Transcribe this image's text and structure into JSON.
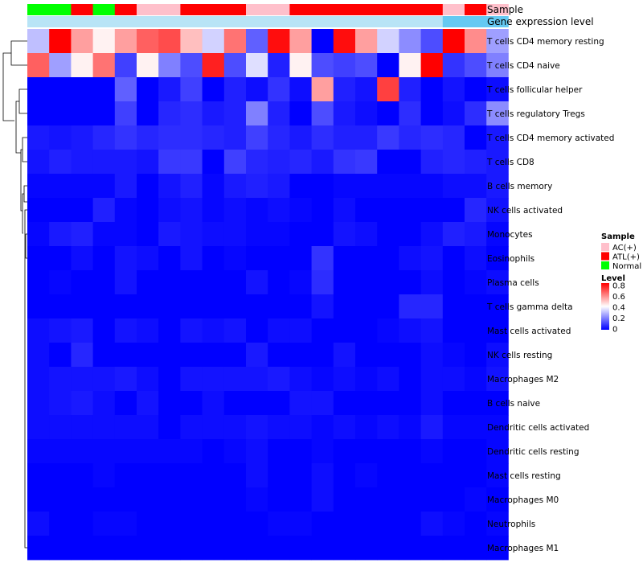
{
  "chart_data": {
    "type": "heatmap",
    "title": "",
    "track_labels": {
      "sample": "Sample",
      "level": "Gene expression level"
    },
    "rows": [
      "T cells CD4 memory resting",
      "T cells CD4 naive",
      "T cells follicular helper",
      "T cells regulatory  Tregs",
      "T cells CD4 memory activated",
      "T cells CD8",
      "B cells memory",
      "NK cells activated",
      "Monocytes",
      "Eosinophils",
      "Plasma cells",
      "T cells gamma delta",
      "Mast cells activated",
      "NK cells resting",
      "Macrophages M2",
      "B cells naive",
      "Dendritic cells activated",
      "Dendritic cells resting",
      "Mast cells resting",
      "Macrophages M0",
      "Neutrophils",
      "Macrophages M1"
    ],
    "sample_groups": [
      "Normal",
      "Normal",
      "ATL(+)",
      "Normal",
      "ATL(+)",
      "AC(+)",
      "AC(+)",
      "ATL(+)",
      "ATL(+)",
      "ATL(+)",
      "AC(+)",
      "AC(+)",
      "ATL(+)",
      "ATL(+)",
      "ATL(+)",
      "ATL(+)",
      "ATL(+)",
      "ATL(+)",
      "ATL(+)",
      "AC(+)",
      "ATL(+)",
      "AC(+)"
    ],
    "values": [
      [
        0.3,
        0.8,
        0.55,
        0.42,
        0.55,
        0.65,
        0.68,
        0.5,
        0.33,
        0.62,
        0.15,
        0.78,
        0.55,
        0.0,
        0.78,
        0.55,
        0.33,
        0.22,
        0.12,
        0.8,
        0.58,
        0.25
      ],
      [
        0.65,
        0.25,
        0.42,
        0.62,
        0.1,
        0.42,
        0.2,
        0.12,
        0.75,
        0.12,
        0.35,
        0.05,
        0.42,
        0.12,
        0.1,
        0.12,
        0.0,
        0.42,
        0.8,
        0.08,
        0.12,
        0.2
      ],
      [
        0.0,
        0.0,
        0.0,
        0.0,
        0.15,
        0.0,
        0.04,
        0.1,
        0.0,
        0.05,
        0.02,
        0.08,
        0.02,
        0.55,
        0.05,
        0.03,
        0.7,
        0.05,
        0.0,
        0.03,
        0.0,
        0.02
      ],
      [
        0.0,
        0.0,
        0.0,
        0.0,
        0.1,
        0.0,
        0.06,
        0.07,
        0.04,
        0.05,
        0.2,
        0.05,
        0.0,
        0.12,
        0.04,
        0.02,
        0.0,
        0.07,
        0.0,
        0.02,
        0.07,
        0.22
      ],
      [
        0.04,
        0.03,
        0.04,
        0.06,
        0.08,
        0.06,
        0.07,
        0.07,
        0.06,
        0.05,
        0.1,
        0.06,
        0.04,
        0.07,
        0.05,
        0.05,
        0.09,
        0.06,
        0.07,
        0.06,
        0.0,
        0.04
      ],
      [
        0.03,
        0.05,
        0.04,
        0.04,
        0.04,
        0.03,
        0.09,
        0.09,
        0.0,
        0.1,
        0.06,
        0.05,
        0.06,
        0.04,
        0.08,
        0.09,
        0.0,
        0.0,
        0.05,
        0.06,
        0.05,
        0.04
      ],
      [
        0.01,
        0.01,
        0.01,
        0.01,
        0.04,
        0.0,
        0.03,
        0.05,
        0.01,
        0.04,
        0.05,
        0.04,
        0.0,
        0.0,
        0.01,
        0.01,
        0.01,
        0.01,
        0.01,
        0.02,
        0.02,
        0.04
      ],
      [
        0.0,
        0.0,
        0.0,
        0.05,
        0.01,
        0.0,
        0.02,
        0.03,
        0.01,
        0.02,
        0.01,
        0.02,
        0.01,
        0.0,
        0.02,
        0.0,
        0.0,
        0.0,
        0.0,
        0.0,
        0.06,
        0.03
      ],
      [
        0.01,
        0.04,
        0.05,
        0.01,
        0.01,
        0.0,
        0.04,
        0.03,
        0.02,
        0.02,
        0.01,
        0.01,
        0.0,
        0.0,
        0.03,
        0.02,
        0.0,
        0.0,
        0.02,
        0.05,
        0.04,
        0.01
      ],
      [
        0.0,
        0.0,
        0.02,
        0.0,
        0.03,
        0.02,
        0.0,
        0.03,
        0.0,
        0.01,
        0.0,
        0.0,
        0.0,
        0.08,
        0.0,
        0.0,
        0.0,
        0.02,
        0.03,
        0.0,
        0.02,
        0.0
      ],
      [
        0.0,
        0.01,
        0.0,
        0.0,
        0.03,
        0.0,
        0.0,
        0.0,
        0.0,
        0.0,
        0.03,
        0.0,
        0.01,
        0.07,
        0.0,
        0.0,
        0.0,
        0.0,
        0.02,
        0.0,
        0.01,
        0.02
      ],
      [
        0.0,
        0.0,
        0.0,
        0.0,
        0.0,
        0.0,
        0.0,
        0.0,
        0.0,
        0.0,
        0.0,
        0.0,
        0.0,
        0.03,
        0.0,
        0.0,
        0.0,
        0.06,
        0.06,
        0.0,
        0.0,
        0.0
      ],
      [
        0.02,
        0.03,
        0.04,
        0.0,
        0.03,
        0.02,
        0.0,
        0.03,
        0.02,
        0.03,
        0.0,
        0.02,
        0.02,
        0.0,
        0.0,
        0.0,
        0.01,
        0.02,
        0.03,
        0.0,
        0.0,
        0.0
      ],
      [
        0.02,
        0.0,
        0.06,
        0.0,
        0.0,
        0.0,
        0.0,
        0.0,
        0.0,
        0.0,
        0.04,
        0.0,
        0.0,
        0.0,
        0.03,
        0.0,
        0.0,
        0.0,
        0.02,
        0.01,
        0.0,
        0.02
      ],
      [
        0.02,
        0.03,
        0.03,
        0.03,
        0.04,
        0.02,
        0.0,
        0.03,
        0.03,
        0.03,
        0.03,
        0.04,
        0.02,
        0.01,
        0.02,
        0.01,
        0.02,
        0.0,
        0.02,
        0.02,
        0.01,
        0.03
      ],
      [
        0.02,
        0.03,
        0.04,
        0.02,
        0.0,
        0.03,
        0.0,
        0.0,
        0.02,
        0.0,
        0.0,
        0.0,
        0.03,
        0.03,
        0.0,
        0.0,
        0.0,
        0.0,
        0.02,
        0.0,
        0.0,
        0.0
      ],
      [
        0.02,
        0.02,
        0.02,
        0.02,
        0.02,
        0.02,
        0.0,
        0.02,
        0.02,
        0.02,
        0.03,
        0.02,
        0.02,
        0.01,
        0.02,
        0.01,
        0.02,
        0.01,
        0.04,
        0.01,
        0.01,
        0.01
      ],
      [
        0.01,
        0.01,
        0.01,
        0.01,
        0.01,
        0.01,
        0.01,
        0.01,
        0.0,
        0.01,
        0.02,
        0.0,
        0.0,
        0.01,
        0.0,
        0.0,
        0.0,
        0.0,
        0.01,
        0.0,
        0.0,
        0.01
      ],
      [
        0.0,
        0.0,
        0.0,
        0.01,
        0.0,
        0.0,
        0.0,
        0.0,
        0.0,
        0.0,
        0.02,
        0.0,
        0.0,
        0.02,
        0.0,
        0.01,
        0.0,
        0.0,
        0.0,
        0.0,
        0.0,
        0.01
      ],
      [
        0.0,
        0.0,
        0.0,
        0.0,
        0.0,
        0.0,
        0.0,
        0.0,
        0.0,
        0.0,
        0.01,
        0.0,
        0.0,
        0.02,
        0.0,
        0.0,
        0.0,
        0.0,
        0.0,
        0.0,
        0.01,
        0.0
      ],
      [
        0.02,
        0.0,
        0.0,
        0.01,
        0.01,
        0.0,
        0.0,
        0.0,
        0.0,
        0.0,
        0.0,
        0.01,
        0.01,
        0.0,
        0.0,
        0.0,
        0.0,
        0.0,
        0.02,
        0.01,
        0.0,
        0.01
      ],
      [
        0.0,
        0.0,
        0.0,
        0.0,
        0.0,
        0.0,
        0.0,
        0.0,
        0.0,
        0.0,
        0.0,
        0.0,
        0.0,
        0.0,
        0.0,
        0.0,
        0.0,
        0.0,
        0.0,
        0.0,
        0.0,
        0.0
      ]
    ],
    "color_scale": {
      "low": "#0000ff",
      "mid": "#ffffff",
      "high": "#ff0000",
      "min": 0,
      "mid_value": 0.4,
      "max": 0.8
    },
    "sample_colors": {
      "AC(+)": "#ffc0cb",
      "ATL(+)": "#ff0000",
      "Normal": "#00ff00"
    },
    "level_track_colors": [
      "#b8e4f6",
      "#65c9f2"
    ],
    "legend": {
      "sample_title": "Sample",
      "sample_entries": [
        "AC(+)",
        "ATL(+)",
        "Normal"
      ],
      "level_title": "Level",
      "level_ticks": [
        "0.8",
        "0.6",
        "0.4",
        "0.2",
        "0"
      ]
    }
  }
}
